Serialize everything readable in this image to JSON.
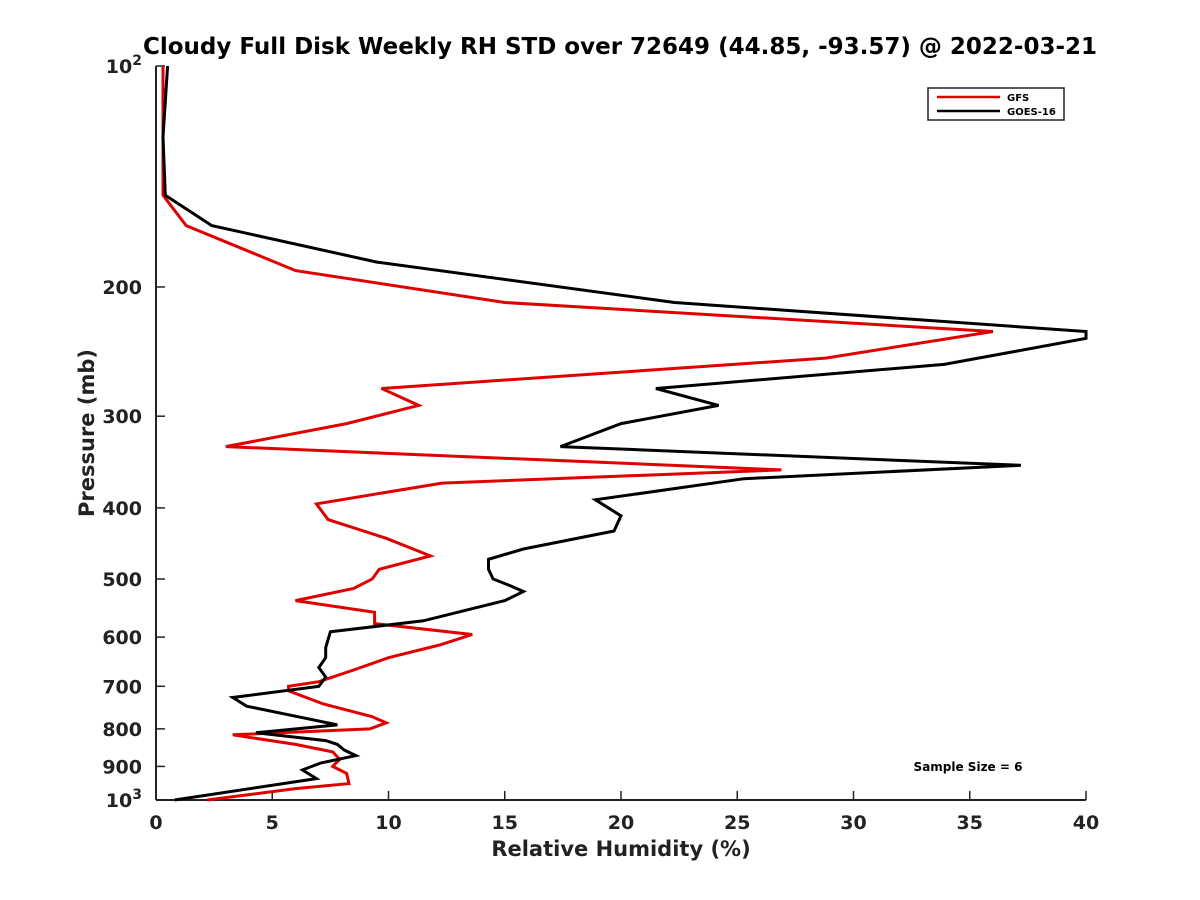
{
  "chart_data": {
    "type": "line",
    "title": "Cloudy Full Disk Weekly RH STD over 72649 (44.85, -93.57) @ 2022-03-21",
    "xlabel": "Relative Humidity (%)",
    "ylabel": "Pressure (mb)",
    "xlim": [
      0,
      40
    ],
    "ylim": [
      100,
      1000
    ],
    "y_scale": "log",
    "y_reversed": true,
    "x_ticks": [
      "0",
      "5",
      "10",
      "15",
      "20",
      "25",
      "30",
      "35",
      "40"
    ],
    "y_ticks": [
      {
        "value": 100,
        "base": "10",
        "exp": "2"
      },
      {
        "value": 200,
        "label": "200"
      },
      {
        "value": 300,
        "label": "300"
      },
      {
        "value": 400,
        "label": "400"
      },
      {
        "value": 500,
        "label": "500"
      },
      {
        "value": 600,
        "label": "600"
      },
      {
        "value": 700,
        "label": "700"
      },
      {
        "value": 800,
        "label": "800"
      },
      {
        "value": 900,
        "label": "900"
      },
      {
        "value": 1000,
        "base": "10",
        "exp": "3"
      }
    ],
    "grid": false,
    "legend_position": "top-right",
    "annotation": "Sample Size = 6",
    "series": [
      {
        "name": "GFS",
        "color": "#e00000",
        "points": [
          [
            0.3,
            100
          ],
          [
            0.3,
            125
          ],
          [
            0.3,
            150
          ],
          [
            1.3,
            165
          ],
          [
            6,
            190
          ],
          [
            15,
            210
          ],
          [
            36,
            230
          ],
          [
            28.8,
            250
          ],
          [
            9.7,
            275
          ],
          [
            11.3,
            290
          ],
          [
            8.2,
            307
          ],
          [
            3,
            330
          ],
          [
            26.9,
            355
          ],
          [
            12.3,
            370
          ],
          [
            6.9,
            395
          ],
          [
            7.4,
            415
          ],
          [
            9.9,
            440
          ],
          [
            11.8,
            465
          ],
          [
            9.6,
            485
          ],
          [
            9.3,
            500
          ],
          [
            8.5,
            515
          ],
          [
            6,
            535
          ],
          [
            9.4,
            555
          ],
          [
            9.4,
            575
          ],
          [
            13.6,
            595
          ],
          [
            12.2,
            615
          ],
          [
            10,
            640
          ],
          [
            8.5,
            665
          ],
          [
            7,
            690
          ],
          [
            5.7,
            700
          ],
          [
            5.7,
            710
          ],
          [
            7.2,
            740
          ],
          [
            9.3,
            770
          ],
          [
            9.9,
            785
          ],
          [
            9.2,
            800
          ],
          [
            3.3,
            815
          ],
          [
            6,
            840
          ],
          [
            7.6,
            860
          ],
          [
            7.9,
            880
          ],
          [
            7.6,
            900
          ],
          [
            8.2,
            920
          ],
          [
            8.3,
            950
          ],
          [
            6,
            965
          ],
          [
            2.2,
            1000
          ]
        ]
      },
      {
        "name": "GOES-16",
        "color": "#000000",
        "points": [
          [
            0.5,
            100
          ],
          [
            0.3,
            125
          ],
          [
            0.4,
            150
          ],
          [
            2.4,
            165
          ],
          [
            9.5,
            185
          ],
          [
            22.3,
            210
          ],
          [
            40,
            230
          ],
          [
            40,
            235
          ],
          [
            33.9,
            255
          ],
          [
            21.5,
            275
          ],
          [
            24.2,
            290
          ],
          [
            20,
            307
          ],
          [
            17.4,
            330
          ],
          [
            37.2,
            350
          ],
          [
            25.3,
            365
          ],
          [
            18.9,
            390
          ],
          [
            20,
            410
          ],
          [
            19.7,
            430
          ],
          [
            15.8,
            455
          ],
          [
            14.3,
            470
          ],
          [
            14.3,
            485
          ],
          [
            14.5,
            500
          ],
          [
            15.2,
            510
          ],
          [
            15.8,
            520
          ],
          [
            15,
            535
          ],
          [
            11.5,
            570
          ],
          [
            7.5,
            590
          ],
          [
            7.3,
            620
          ],
          [
            7.3,
            640
          ],
          [
            7,
            660
          ],
          [
            7.3,
            680
          ],
          [
            7,
            700
          ],
          [
            3.3,
            725
          ],
          [
            3.9,
            745
          ],
          [
            6.1,
            770
          ],
          [
            7.8,
            790
          ],
          [
            4.3,
            810
          ],
          [
            7.3,
            830
          ],
          [
            7.8,
            840
          ],
          [
            8.1,
            855
          ],
          [
            8.6,
            870
          ],
          [
            7.1,
            890
          ],
          [
            6.3,
            910
          ],
          [
            6.9,
            935
          ],
          [
            0.8,
            1000
          ]
        ]
      }
    ]
  }
}
